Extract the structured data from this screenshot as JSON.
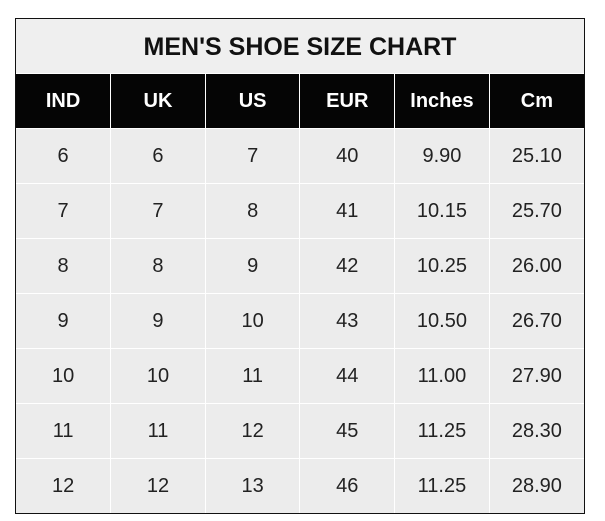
{
  "chart_data": {
    "type": "table",
    "title": "MEN'S SHOE SIZE CHART",
    "columns": [
      "IND",
      "UK",
      "US",
      "EUR",
      "Inches",
      "Cm"
    ],
    "rows": [
      [
        "6",
        "6",
        "7",
        "40",
        "9.90",
        "25.10"
      ],
      [
        "7",
        "7",
        "8",
        "41",
        "10.15",
        "25.70"
      ],
      [
        "8",
        "8",
        "9",
        "42",
        "10.25",
        "26.00"
      ],
      [
        "9",
        "9",
        "10",
        "43",
        "10.50",
        "26.70"
      ],
      [
        "10",
        "10",
        "11",
        "44",
        "11.00",
        "27.90"
      ],
      [
        "11",
        "11",
        "12",
        "45",
        "11.25",
        "28.30"
      ],
      [
        "12",
        "12",
        "13",
        "46",
        "11.25",
        "28.90"
      ]
    ]
  },
  "colors": {
    "header_bg": "#050505",
    "header_text": "#ffffff",
    "cell_bg": "#ececec"
  }
}
